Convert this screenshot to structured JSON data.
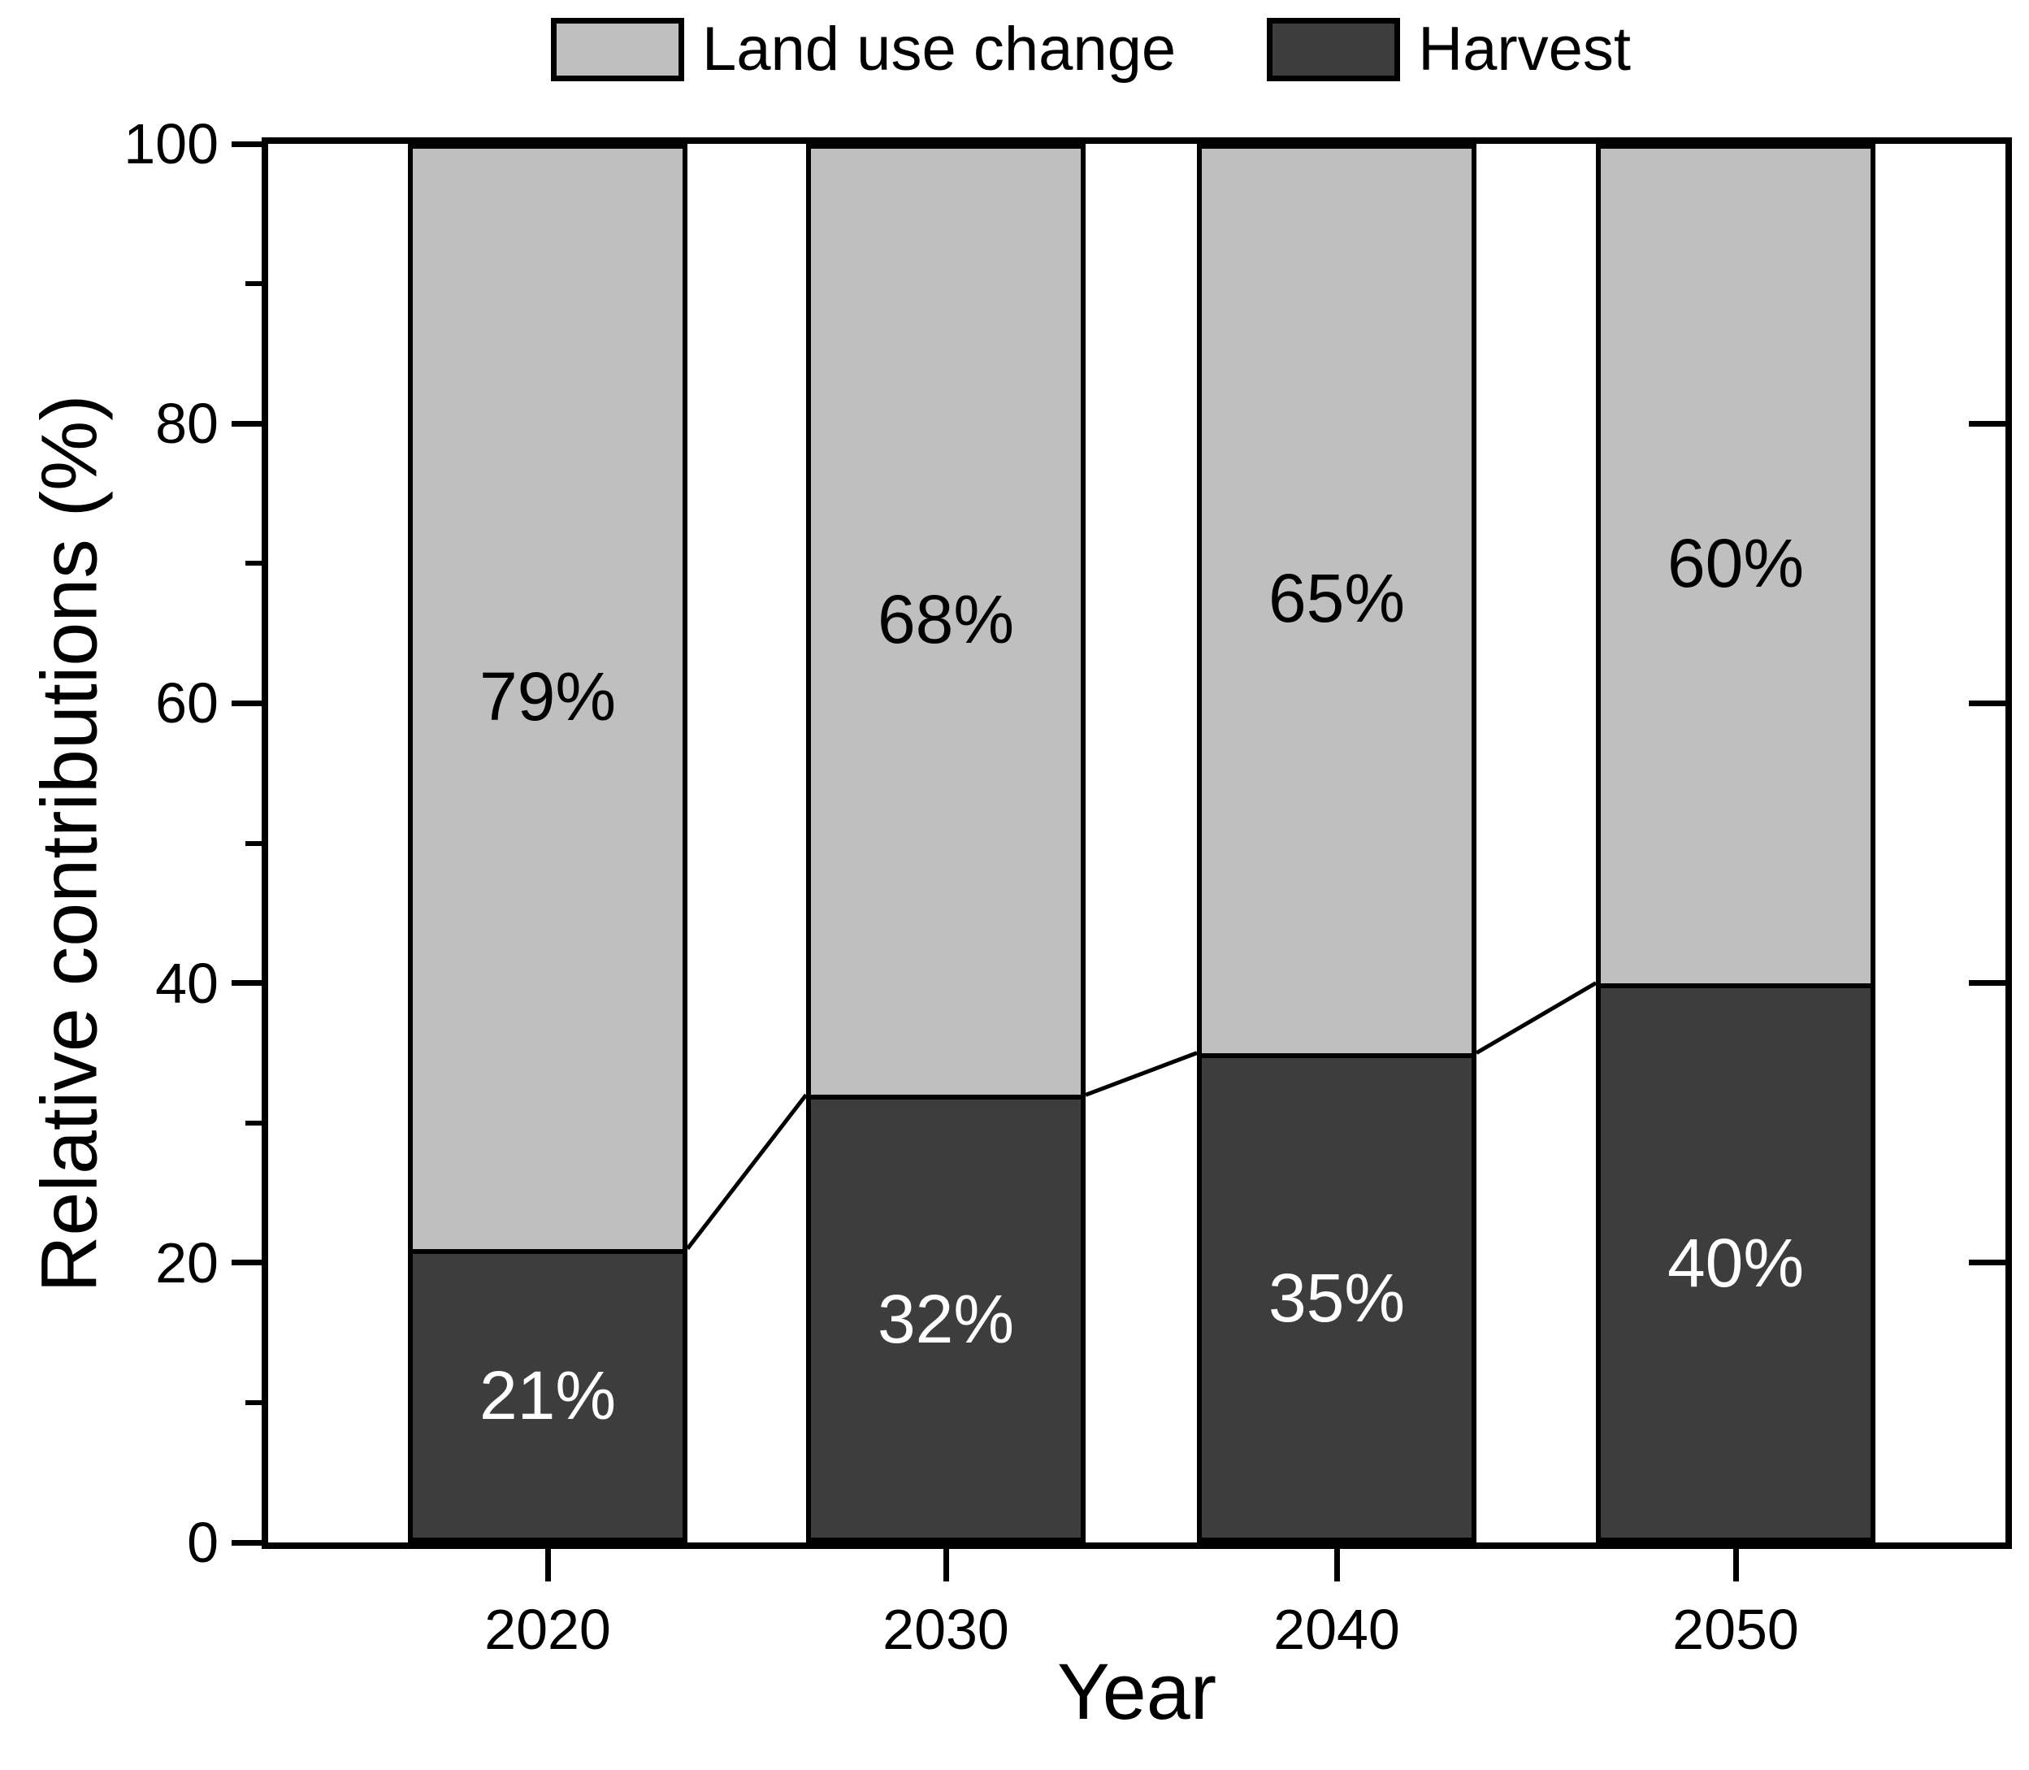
{
  "chart_data": {
    "type": "bar",
    "stacked": true,
    "title": "",
    "xlabel": "Year",
    "ylabel": "Relative contributions (%)",
    "categories": [
      "2020",
      "2030",
      "2040",
      "2050"
    ],
    "series": [
      {
        "name": "Harvest",
        "stack_position": "bottom",
        "color": "#3d3d3d",
        "label_color": "#ffffff",
        "values": [
          21,
          32,
          35,
          40
        ],
        "labels": [
          "21%",
          "32%",
          "35%",
          "40%"
        ]
      },
      {
        "name": "Land use change",
        "stack_position": "top",
        "color": "#bfbfbf",
        "label_color": "#000000",
        "values": [
          79,
          68,
          65,
          60
        ],
        "labels": [
          "79%",
          "68%",
          "65%",
          "60%"
        ]
      }
    ],
    "legend": {
      "position": "top",
      "order": [
        "Land use change",
        "Harvest"
      ]
    },
    "y_axis": {
      "min": 0,
      "max": 100,
      "major_ticks": [
        0,
        20,
        40,
        60,
        80,
        100
      ],
      "minor_ticks": [
        10,
        30,
        50,
        70,
        90
      ],
      "tick_labels": [
        "0",
        "20",
        "40",
        "60",
        "80",
        "100"
      ]
    },
    "connector_lines": true,
    "background": "#ffffff",
    "frame_color": "#000000"
  }
}
